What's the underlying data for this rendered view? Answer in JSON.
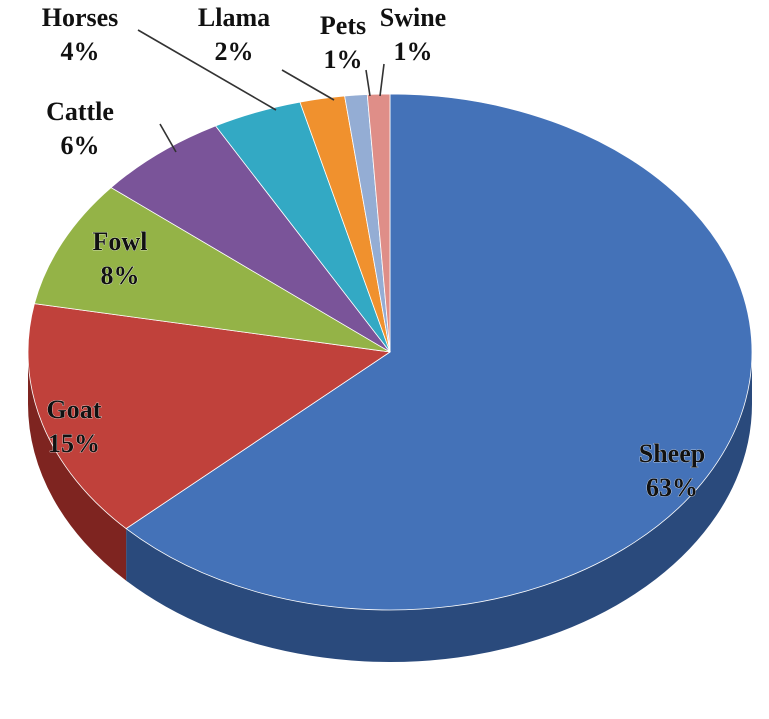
{
  "chart_data": {
    "type": "pie",
    "three_d": true,
    "title": "",
    "legend": "none",
    "slices": [
      {
        "label": "Sheep",
        "percent_label": "63%",
        "value": 63,
        "color": "#4472b8",
        "side_color": "#2a4a7c"
      },
      {
        "label": "Goat",
        "percent_label": "15%",
        "value": 15,
        "color": "#c0413b",
        "side_color": "#7e2420"
      },
      {
        "label": "Fowl",
        "percent_label": "8%",
        "value": 8,
        "color": "#94b347",
        "side_color": "#5f7528"
      },
      {
        "label": "Cattle",
        "percent_label": "6%",
        "value": 6,
        "color": "#7a5499",
        "side_color": "#4c3262"
      },
      {
        "label": "Horses",
        "percent_label": "4%",
        "value": 4,
        "color": "#33a9c4",
        "side_color": "#1d6d80"
      },
      {
        "label": "Llama",
        "percent_label": "2%",
        "value": 2,
        "color": "#f0912e",
        "side_color": "#a35d14"
      },
      {
        "label": "Pets",
        "percent_label": "1%",
        "value": 1,
        "color": "#94add4",
        "side_color": "#5e7396"
      },
      {
        "label": "Swine",
        "percent_label": "1%",
        "value": 1,
        "color": "#df8e88",
        "side_color": "#9c5a55"
      }
    ]
  }
}
